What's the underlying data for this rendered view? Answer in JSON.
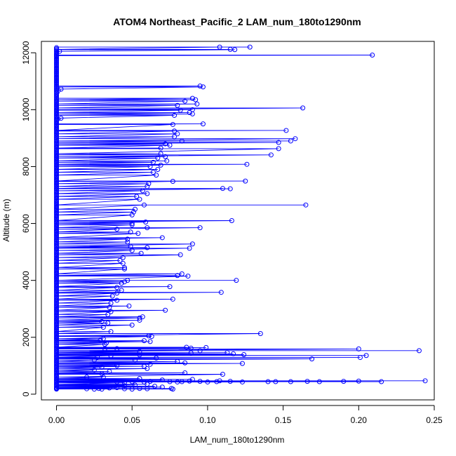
{
  "chart_data": {
    "type": "line",
    "title": "ATOM4 Northeast_Pacific_2 LAM_num_180to1290nm",
    "xlabel": "LAM_num_180to1290nm",
    "ylabel": "Altitude (m)",
    "xlim": [
      -0.01,
      0.25
    ],
    "ylim": [
      -200,
      12400
    ],
    "x_ticks": [
      0.0,
      0.05,
      0.1,
      0.15,
      0.2,
      0.25
    ],
    "x_tick_labels": [
      "0.00",
      "0.05",
      "0.10",
      "0.15",
      "0.20",
      "0.25"
    ],
    "y_ticks": [
      0,
      2000,
      4000,
      6000,
      8000,
      10000,
      12000
    ],
    "y_tick_labels": [
      "0",
      "2000",
      "4000",
      "6000",
      "8000",
      "10000",
      "12000"
    ],
    "series_color": "#0000ff",
    "marker": "open-circle",
    "grid": false,
    "points": [
      [
        0.128,
        12200
      ],
      [
        0.108,
        12200
      ],
      [
        0.115,
        12120
      ],
      [
        0.118,
        12110
      ],
      [
        0.209,
        11920
      ],
      [
        0.002,
        12050
      ],
      [
        0.0,
        11900
      ],
      [
        0.095,
        10830
      ],
      [
        0.097,
        10800
      ],
      [
        0.003,
        10720
      ],
      [
        0.09,
        10400
      ],
      [
        0.092,
        10350
      ],
      [
        0.085,
        10300
      ],
      [
        0.093,
        10200
      ],
      [
        0.08,
        10150
      ],
      [
        0.163,
        10060
      ],
      [
        0.09,
        10000
      ],
      [
        0.082,
        9980
      ],
      [
        0.088,
        9900
      ],
      [
        0.09,
        9850
      ],
      [
        0.078,
        9800
      ],
      [
        0.003,
        9700
      ],
      [
        0.097,
        9500
      ],
      [
        0.077,
        9480
      ],
      [
        0.152,
        9270
      ],
      [
        0.078,
        9250
      ],
      [
        0.08,
        9150
      ],
      [
        0.078,
        9050
      ],
      [
        0.158,
        8980
      ],
      [
        0.155,
        8900
      ],
      [
        0.083,
        8900
      ],
      [
        0.147,
        8850
      ],
      [
        0.072,
        8800
      ],
      [
        0.075,
        8750
      ],
      [
        0.069,
        8650
      ],
      [
        0.147,
        8630
      ],
      [
        0.142,
        8410
      ],
      [
        0.069,
        8450
      ],
      [
        0.072,
        8350
      ],
      [
        0.067,
        8300
      ],
      [
        0.073,
        8200
      ],
      [
        0.064,
        8150
      ],
      [
        0.126,
        8080
      ],
      [
        0.069,
        8050
      ],
      [
        0.062,
        8000
      ],
      [
        0.067,
        7900
      ],
      [
        0.064,
        7800
      ],
      [
        0.066,
        7700
      ],
      [
        0.125,
        7490
      ],
      [
        0.077,
        7480
      ],
      [
        0.061,
        7400
      ],
      [
        0.06,
        7300
      ],
      [
        0.11,
        7230
      ],
      [
        0.115,
        7220
      ],
      [
        0.057,
        7150
      ],
      [
        0.06,
        7050
      ],
      [
        0.053,
        6950
      ],
      [
        0.055,
        6850
      ],
      [
        0.165,
        6650
      ],
      [
        0.058,
        6650
      ],
      [
        0.052,
        6500
      ],
      [
        0.051,
        6400
      ],
      [
        0.05,
        6300
      ],
      [
        0.116,
        6100
      ],
      [
        0.059,
        6050
      ],
      [
        0.05,
        6000
      ],
      [
        0.05,
        5950
      ],
      [
        0.06,
        5850
      ],
      [
        0.095,
        5850
      ],
      [
        0.04,
        5800
      ],
      [
        0.049,
        5700
      ],
      [
        0.054,
        5650
      ],
      [
        0.07,
        5500
      ],
      [
        0.047,
        5450
      ],
      [
        0.047,
        5350
      ],
      [
        0.09,
        5280
      ],
      [
        0.049,
        5200
      ],
      [
        0.06,
        5150
      ],
      [
        0.088,
        5130
      ],
      [
        0.05,
        5050
      ],
      [
        0.056,
        4950
      ],
      [
        0.082,
        4900
      ],
      [
        0.044,
        4800
      ],
      [
        0.042,
        4700
      ],
      [
        0.044,
        4600
      ],
      [
        0.045,
        4450
      ],
      [
        0.045,
        4400
      ],
      [
        0.083,
        4230
      ],
      [
        0.08,
        4170
      ],
      [
        0.087,
        4150
      ],
      [
        0.119,
        4000
      ],
      [
        0.047,
        4000
      ],
      [
        0.045,
        3950
      ],
      [
        0.043,
        3900
      ],
      [
        0.075,
        3780
      ],
      [
        0.04,
        3750
      ],
      [
        0.043,
        3650
      ],
      [
        0.109,
        3580
      ],
      [
        0.04,
        3550
      ],
      [
        0.037,
        3450
      ],
      [
        0.077,
        3340
      ],
      [
        0.04,
        3300
      ],
      [
        0.036,
        3200
      ],
      [
        0.048,
        3100
      ],
      [
        0.035,
        3050
      ],
      [
        0.072,
        2950
      ],
      [
        0.036,
        2900
      ],
      [
        0.034,
        2800
      ],
      [
        0.057,
        2720
      ],
      [
        0.055,
        2680
      ],
      [
        0.055,
        2600
      ],
      [
        0.03,
        2550
      ],
      [
        0.034,
        2500
      ],
      [
        0.05,
        2430
      ],
      [
        0.031,
        2350
      ],
      [
        0.036,
        2200
      ],
      [
        0.135,
        2130
      ],
      [
        0.061,
        2050
      ],
      [
        0.063,
        2030
      ],
      [
        0.031,
        1950
      ],
      [
        0.029,
        1900
      ],
      [
        0.058,
        1880
      ],
      [
        0.062,
        1850
      ],
      [
        0.033,
        1800
      ],
      [
        0.032,
        1750
      ],
      [
        0.099,
        1640
      ],
      [
        0.086,
        1650
      ],
      [
        0.089,
        1620
      ],
      [
        0.04,
        1600
      ],
      [
        0.032,
        1600
      ],
      [
        0.2,
        1590
      ],
      [
        0.24,
        1530
      ],
      [
        0.095,
        1530
      ],
      [
        0.055,
        1500
      ],
      [
        0.089,
        1450
      ],
      [
        0.113,
        1460
      ],
      [
        0.117,
        1420
      ],
      [
        0.124,
        1390
      ],
      [
        0.055,
        1380
      ],
      [
        0.036,
        1350
      ],
      [
        0.027,
        1300
      ],
      [
        0.205,
        1360
      ],
      [
        0.201,
        1290
      ],
      [
        0.169,
        1240
      ],
      [
        0.066,
        1270
      ],
      [
        0.052,
        1200
      ],
      [
        0.025,
        1200
      ],
      [
        0.08,
        1150
      ],
      [
        0.085,
        1100
      ],
      [
        0.123,
        1080
      ],
      [
        0.062,
        1050
      ],
      [
        0.04,
        1000
      ],
      [
        0.058,
        980
      ],
      [
        0.03,
        950
      ],
      [
        0.06,
        900
      ],
      [
        0.025,
        850
      ],
      [
        0.035,
        800
      ],
      [
        0.085,
        750
      ],
      [
        0.11,
        700
      ],
      [
        0.03,
        720
      ],
      [
        0.02,
        600
      ],
      [
        0.031,
        600
      ],
      [
        0.055,
        550
      ],
      [
        0.09,
        520
      ],
      [
        0.07,
        500
      ],
      [
        0.244,
        470
      ],
      [
        0.215,
        440
      ],
      [
        0.19,
        450
      ],
      [
        0.2,
        460
      ],
      [
        0.155,
        440
      ],
      [
        0.166,
        450
      ],
      [
        0.174,
        440
      ],
      [
        0.145,
        440
      ],
      [
        0.14,
        440
      ],
      [
        0.123,
        430
      ],
      [
        0.115,
        450
      ],
      [
        0.108,
        470
      ],
      [
        0.106,
        440
      ],
      [
        0.1,
        430
      ],
      [
        0.095,
        450
      ],
      [
        0.088,
        460
      ],
      [
        0.083,
        440
      ],
      [
        0.08,
        430
      ],
      [
        0.075,
        440
      ],
      [
        0.062,
        450
      ],
      [
        0.058,
        430
      ],
      [
        0.05,
        440
      ],
      [
        0.045,
        400
      ],
      [
        0.04,
        430
      ],
      [
        0.06,
        350
      ],
      [
        0.052,
        320
      ],
      [
        0.045,
        300
      ],
      [
        0.065,
        280
      ],
      [
        0.07,
        250
      ],
      [
        0.04,
        230
      ],
      [
        0.035,
        220
      ],
      [
        0.055,
        200
      ],
      [
        0.077,
        180
      ],
      [
        0.076,
        200
      ],
      [
        0.03,
        180
      ],
      [
        0.028,
        200
      ],
      [
        0.025,
        180
      ],
      [
        0.02,
        190
      ],
      [
        0.045,
        190
      ],
      [
        0.05,
        180
      ],
      [
        0.06,
        190
      ],
      [
        0.0,
        200
      ]
    ]
  }
}
